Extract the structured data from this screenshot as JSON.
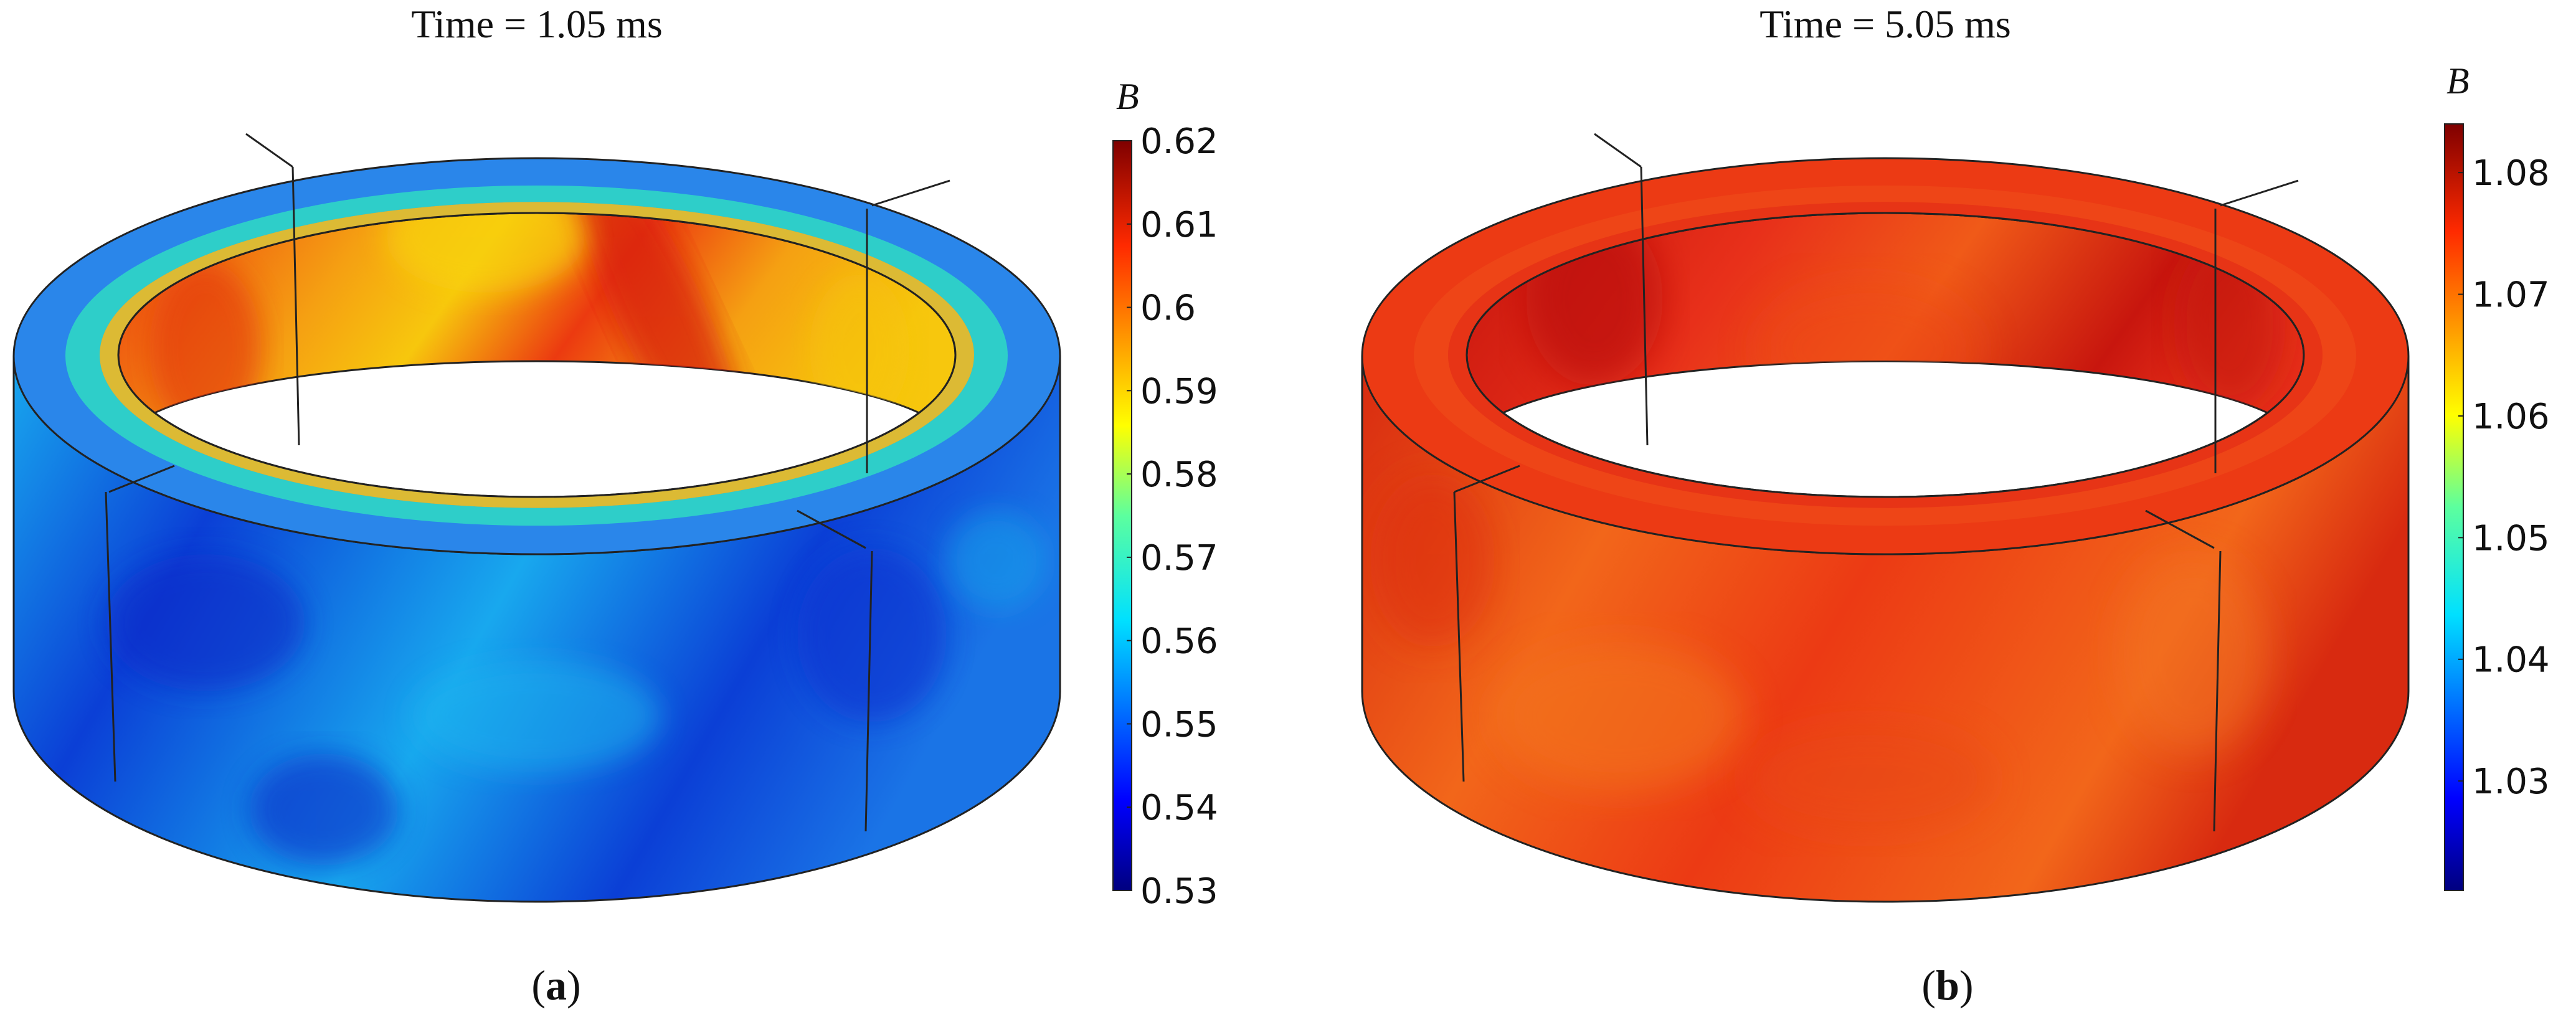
{
  "panels": [
    {
      "id": "a",
      "title": "Time = 1.05 ms",
      "caption_letter": "a",
      "colorbar": {
        "symbol": "B",
        "min": 0.53,
        "max": 0.62,
        "ticks": [
          "0.62",
          "0.61",
          "0.6",
          "0.59",
          "0.58",
          "0.57",
          "0.56",
          "0.55",
          "0.54",
          "0.53"
        ]
      },
      "field": {
        "outer_wall": "#1a74e6",
        "outer_wall_dark": "#0b3fd6",
        "outer_wall_light": "#18a8ee",
        "inner_wall": "#f5a012",
        "inner_wall_red": "#ec3a10",
        "inner_wall_yellow": "#f7c70d",
        "top_outer": "#2a86ea",
        "top_mid": "#2fe0c0",
        "top_inner": "#f0c020"
      }
    },
    {
      "id": "b",
      "title": "Time = 5.05 ms",
      "caption_letter": "b",
      "colorbar": {
        "symbol": "B",
        "min": 1.021,
        "max": 1.084,
        "ticks": [
          "1.08",
          "1.07",
          "1.06",
          "1.05",
          "1.04",
          "1.03"
        ]
      },
      "field": {
        "outer_wall": "#ec3a14",
        "outer_wall_dark": "#d82a10",
        "outer_wall_light": "#f2661a",
        "inner_wall": "#e8301a",
        "inner_wall_red": "#c8160e",
        "inner_wall_yellow": "#f05a18",
        "top_outer": "#ec3a14",
        "top_mid": "#f0501a",
        "top_inner": "#e63316"
      }
    }
  ]
}
